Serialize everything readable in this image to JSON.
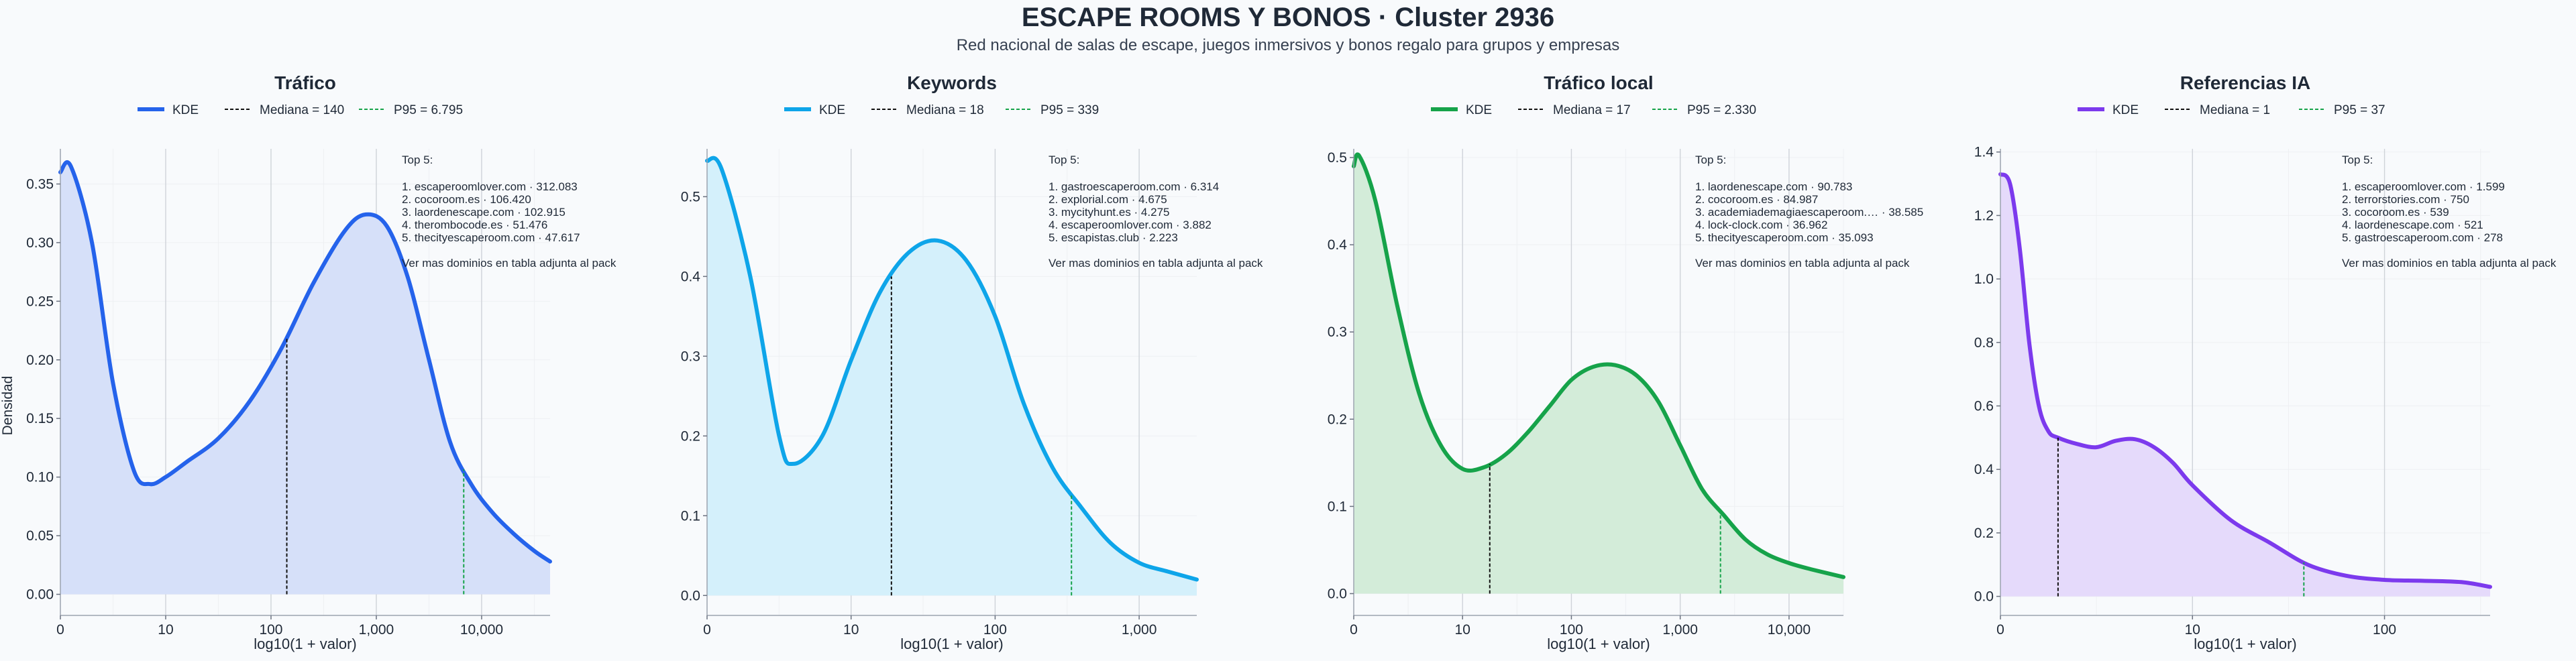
{
  "header": {
    "title": "ESCAPE ROOMS Y BONOS · Cluster 2936",
    "subtitle": "Red nacional de salas de escape, juegos inmersivos y bonos regalo para grupos y empresas"
  },
  "shared": {
    "ylabel": "Densidad",
    "xlabel": "log10(1 + valor)",
    "legend_kde": "KDE",
    "top_title": "Top 5:",
    "more_note": "Ver mas dominios en tabla adjunta al pack",
    "median_color": "#111111",
    "p95_color": "#16a34a"
  },
  "chart_data": [
    {
      "type": "area",
      "title": "Tráfico",
      "color": "#2563eb",
      "fill": "#d6e0f9",
      "legend": [
        "KDE",
        "Mediana = 140",
        "P95 = 6.795"
      ],
      "xlabel": "log10(1 + valor)",
      "ylabel": "Densidad",
      "xlim": [
        0,
        4.65
      ],
      "ylim": [
        -0.018,
        0.38
      ],
      "xticks": [
        0,
        1,
        2,
        3,
        4
      ],
      "xtick_labels": [
        "0",
        "10",
        "100",
        "1,000",
        "10,000"
      ],
      "yticks": [
        0,
        0.05,
        0.1,
        0.15,
        0.2,
        0.25,
        0.3,
        0.35
      ],
      "ytick_labels": [
        "0.00",
        "0.05",
        "0.10",
        "0.15",
        "0.20",
        "0.25",
        "0.30",
        "0.35"
      ],
      "median": 2.15,
      "p95": 3.83,
      "x": [
        0,
        0.1,
        0.3,
        0.5,
        0.7,
        0.85,
        1.0,
        1.2,
        1.5,
        1.8,
        2.1,
        2.4,
        2.7,
        2.9,
        3.1,
        3.3,
        3.5,
        3.7,
        3.9,
        4.1,
        4.3,
        4.5,
        4.65
      ],
      "y": [
        0.36,
        0.365,
        0.3,
        0.18,
        0.105,
        0.094,
        0.1,
        0.113,
        0.133,
        0.165,
        0.21,
        0.265,
        0.31,
        0.324,
        0.314,
        0.27,
        0.2,
        0.13,
        0.094,
        0.07,
        0.052,
        0.037,
        0.028
      ],
      "top5": [
        "1. escaperoomlover.com · 312.083",
        "2. cocoroom.es · 106.420",
        "3. laordenescape.com · 102.915",
        "4. therombocode.es · 51.476",
        "5. thecityescaperoom.com · 47.617"
      ]
    },
    {
      "type": "area",
      "title": "Keywords",
      "color": "#0ea5e9",
      "fill": "#d4f0fb",
      "legend": [
        "KDE",
        "Mediana = 18",
        "P95 = 339"
      ],
      "xlabel": "log10(1 + valor)",
      "ylabel": "",
      "xlim": [
        0,
        3.4
      ],
      "ylim": [
        -0.025,
        0.56
      ],
      "xticks": [
        0,
        1,
        2,
        3
      ],
      "xtick_labels": [
        "0",
        "10",
        "100",
        "1,000"
      ],
      "yticks": [
        0,
        0.1,
        0.2,
        0.3,
        0.4,
        0.5
      ],
      "ytick_labels": [
        "0.0",
        "0.1",
        "0.2",
        "0.3",
        "0.4",
        "0.5"
      ],
      "median": 1.28,
      "p95": 2.53,
      "x": [
        0,
        0.1,
        0.3,
        0.5,
        0.6,
        0.8,
        1.0,
        1.2,
        1.4,
        1.6,
        1.8,
        2.0,
        2.2,
        2.4,
        2.6,
        2.8,
        3.0,
        3.2,
        3.4
      ],
      "y": [
        0.545,
        0.535,
        0.4,
        0.2,
        0.165,
        0.2,
        0.295,
        0.38,
        0.43,
        0.445,
        0.42,
        0.35,
        0.24,
        0.16,
        0.11,
        0.066,
        0.041,
        0.03,
        0.02
      ],
      "top5": [
        "1. gastroescaperoom.com · 6.314",
        "2. explorial.com · 4.675",
        "3. mycityhunt.es · 4.275",
        "4. escaperoomlover.com · 3.882",
        "5. escapistas.club · 2.223"
      ]
    },
    {
      "type": "area",
      "title": "Tráfico local",
      "color": "#16a34a",
      "fill": "#d3ecd9",
      "legend": [
        "KDE",
        "Mediana = 17",
        "P95 = 2.330"
      ],
      "xlabel": "log10(1 + valor)",
      "ylabel": "",
      "xlim": [
        0,
        4.5
      ],
      "ylim": [
        -0.025,
        0.51
      ],
      "xticks": [
        0,
        1,
        2,
        3,
        4
      ],
      "xtick_labels": [
        "0",
        "10",
        "100",
        "1,000",
        "10,000"
      ],
      "yticks": [
        0,
        0.1,
        0.2,
        0.3,
        0.4,
        0.5
      ],
      "ytick_labels": [
        "0.0",
        "0.1",
        "0.2",
        "0.3",
        "0.4",
        "0.5"
      ],
      "median": 1.25,
      "p95": 3.37,
      "x": [
        0,
        0.05,
        0.2,
        0.4,
        0.6,
        0.8,
        1.0,
        1.2,
        1.4,
        1.6,
        1.8,
        2.0,
        2.2,
        2.4,
        2.6,
        2.8,
        3.0,
        3.2,
        3.4,
        3.6,
        3.8,
        4.0,
        4.2,
        4.5
      ],
      "y": [
        0.49,
        0.502,
        0.45,
        0.33,
        0.23,
        0.17,
        0.143,
        0.145,
        0.16,
        0.185,
        0.215,
        0.245,
        0.26,
        0.262,
        0.25,
        0.22,
        0.17,
        0.12,
        0.09,
        0.062,
        0.045,
        0.035,
        0.028,
        0.019
      ],
      "top5": [
        "1. laordenescape.com · 90.783",
        "2. cocoroom.es · 84.987",
        "3. academiademagiaescaperoom.… · 38.585",
        "4. lock-clock.com · 36.962",
        "5. thecityescaperoom.com · 35.093"
      ]
    },
    {
      "type": "area",
      "title": "Referencias IA",
      "color": "#7c3aed",
      "fill": "#e5dafb",
      "legend": [
        "KDE",
        "Mediana = 1",
        "P95 = 37"
      ],
      "xlabel": "log10(1 + valor)",
      "ylabel": "",
      "xlim": [
        0,
        2.55
      ],
      "ylim": [
        -0.06,
        1.41
      ],
      "xticks": [
        0,
        1,
        2
      ],
      "xtick_labels": [
        "0",
        "10",
        "100"
      ],
      "yticks": [
        0,
        0.2,
        0.4,
        0.6,
        0.8,
        1.0,
        1.2,
        1.4
      ],
      "ytick_labels": [
        "0.0",
        "0.2",
        "0.4",
        "0.6",
        "0.8",
        "1.0",
        "1.2",
        "1.4"
      ],
      "median": 0.3,
      "p95": 1.58,
      "x": [
        0,
        0.05,
        0.1,
        0.15,
        0.2,
        0.25,
        0.3,
        0.4,
        0.5,
        0.6,
        0.7,
        0.8,
        0.9,
        1.0,
        1.2,
        1.4,
        1.6,
        1.8,
        2.0,
        2.2,
        2.4,
        2.55
      ],
      "y": [
        1.33,
        1.3,
        1.1,
        0.8,
        0.6,
        0.52,
        0.5,
        0.48,
        0.47,
        0.49,
        0.495,
        0.47,
        0.42,
        0.35,
        0.24,
        0.17,
        0.1,
        0.065,
        0.052,
        0.049,
        0.045,
        0.03
      ],
      "top5": [
        "1. escaperoomlover.com · 1.599",
        "2. terrorstories.com · 750",
        "3. cocoroom.es · 539",
        "4. laordenescape.com · 521",
        "5. gastroescaperoom.com · 278"
      ]
    }
  ]
}
